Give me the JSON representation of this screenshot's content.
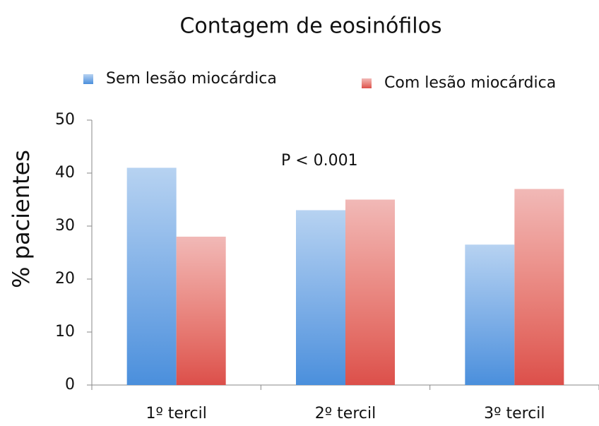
{
  "chart_data": {
    "type": "bar",
    "title": "Contagem de eosinófilos",
    "ylabel": "% pacientes",
    "annotation": "P < 0.001",
    "categories": [
      "1º tercil",
      "2º tercil",
      "3º tercil"
    ],
    "series": [
      {
        "name": "Sem lesão miocárdica",
        "color": "#4a8fdc",
        "values": [
          41,
          33,
          26.5
        ]
      },
      {
        "name": "Com lesão miocárdica",
        "color": "#dc4f4a",
        "values": [
          28,
          35,
          37
        ]
      }
    ],
    "ylim": [
      0,
      50
    ],
    "yticks": [
      0,
      10,
      20,
      30,
      40,
      50
    ],
    "grid": false
  }
}
